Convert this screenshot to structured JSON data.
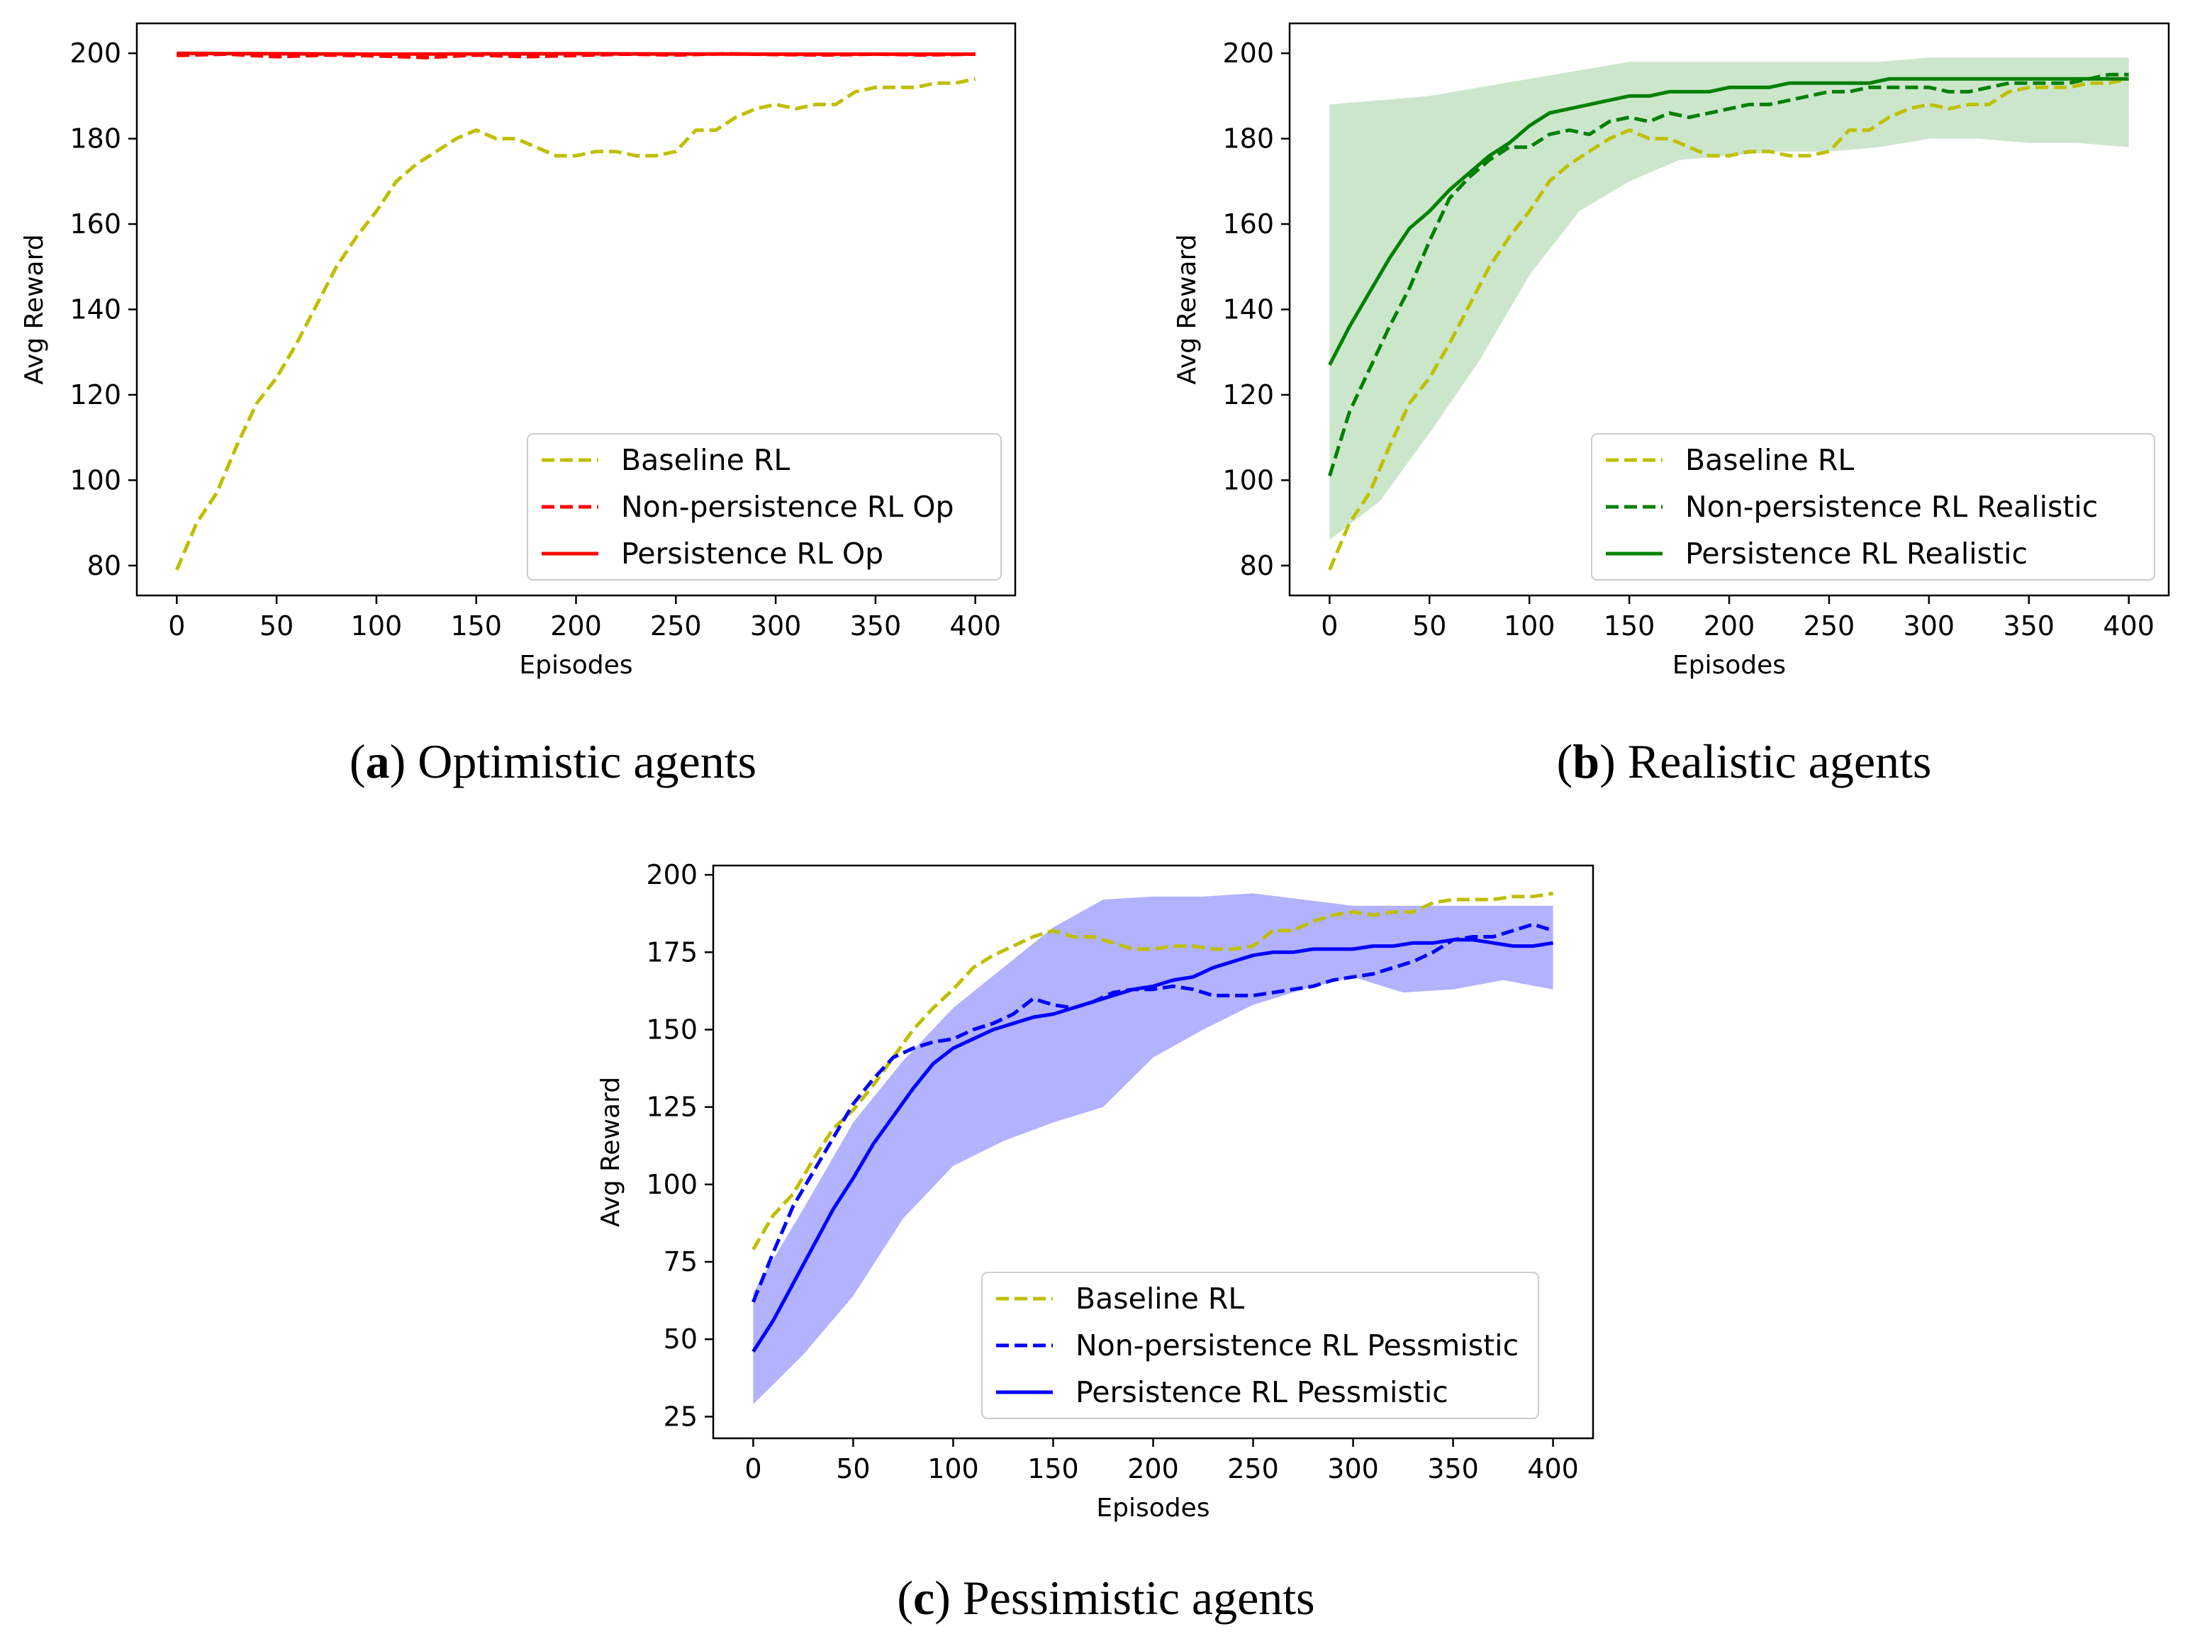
{
  "figure": {
    "captions": [
      {
        "id": "a",
        "letter": "a",
        "text": "Optimistic agents"
      },
      {
        "id": "b",
        "letter": "b",
        "text": "Realistic agents"
      },
      {
        "id": "c",
        "letter": "c",
        "text": "Pessimistic agents"
      }
    ]
  },
  "chart_data": [
    {
      "id": "a",
      "type": "line",
      "title": "",
      "xlabel": "Episodes",
      "ylabel": "Avg Reward",
      "xlim": [
        -20,
        420
      ],
      "ylim": [
        73,
        207
      ],
      "xticks": [
        0,
        50,
        100,
        150,
        200,
        250,
        300,
        350,
        400
      ],
      "yticks": [
        80,
        100,
        120,
        140,
        160,
        180,
        200
      ],
      "legend_position": "lower right",
      "band": null,
      "series": [
        {
          "name": "Baseline RL",
          "color": "#bfbf00",
          "style": "dashed",
          "x": [
            0,
            10,
            20,
            30,
            40,
            50,
            60,
            70,
            80,
            90,
            100,
            110,
            120,
            130,
            140,
            150,
            160,
            170,
            180,
            190,
            200,
            210,
            220,
            230,
            240,
            250,
            260,
            270,
            280,
            290,
            300,
            310,
            320,
            330,
            340,
            350,
            360,
            370,
            380,
            390,
            400
          ],
          "y": [
            79,
            90,
            97,
            108,
            118,
            124,
            132,
            141,
            150,
            157,
            163,
            170,
            174,
            177,
            180,
            182,
            180,
            180,
            178,
            176,
            176,
            177,
            177,
            176,
            176,
            177,
            182,
            182,
            185,
            187,
            188,
            187,
            188,
            188,
            191,
            192,
            192,
            192,
            193,
            193,
            194
          ]
        },
        {
          "name": "Non-persistence RL Op",
          "color": "#ff0000",
          "style": "dashed",
          "x": [
            0,
            25,
            50,
            75,
            100,
            125,
            150,
            175,
            200,
            225,
            250,
            275,
            300,
            325,
            350,
            375,
            400
          ],
          "y": [
            199.5,
            199.8,
            199.2,
            199.6,
            199.4,
            199.0,
            199.6,
            199.2,
            199.5,
            199.8,
            199.6,
            199.9,
            199.7,
            199.6,
            199.8,
            199.6,
            199.8
          ]
        },
        {
          "name": "Persistence RL Op",
          "color": "#ff0000",
          "style": "solid",
          "x": [
            0,
            100,
            200,
            300,
            400
          ],
          "y": [
            200,
            199.8,
            199.9,
            199.8,
            199.8
          ]
        }
      ]
    },
    {
      "id": "b",
      "type": "line",
      "title": "",
      "xlabel": "Episodes",
      "ylabel": "Avg Reward",
      "xlim": [
        -20,
        420
      ],
      "ylim": [
        73,
        207
      ],
      "xticks": [
        0,
        50,
        100,
        150,
        200,
        250,
        300,
        350,
        400
      ],
      "yticks": [
        80,
        100,
        120,
        140,
        160,
        180,
        200
      ],
      "legend_position": "lower right",
      "band": {
        "color": "#008000",
        "opacity": 0.2,
        "x": [
          0,
          25,
          50,
          75,
          100,
          125,
          150,
          175,
          200,
          225,
          250,
          275,
          300,
          325,
          350,
          375,
          400
        ],
        "lower": [
          86,
          95,
          111,
          128,
          148,
          163,
          170,
          175,
          176,
          177,
          177,
          178,
          180,
          180,
          179,
          179,
          178
        ],
        "upper": [
          188,
          189,
          190,
          192,
          194,
          196,
          198,
          198,
          198,
          198,
          198,
          198,
          199,
          199,
          199,
          199,
          199
        ]
      },
      "series": [
        {
          "name": "Baseline RL",
          "color": "#bfbf00",
          "style": "dashed",
          "x": [
            0,
            10,
            20,
            30,
            40,
            50,
            60,
            70,
            80,
            90,
            100,
            110,
            120,
            130,
            140,
            150,
            160,
            170,
            180,
            190,
            200,
            210,
            220,
            230,
            240,
            250,
            260,
            270,
            280,
            290,
            300,
            310,
            320,
            330,
            340,
            350,
            360,
            370,
            380,
            390,
            400
          ],
          "y": [
            79,
            90,
            97,
            108,
            118,
            124,
            132,
            141,
            150,
            157,
            163,
            170,
            174,
            177,
            180,
            182,
            180,
            180,
            178,
            176,
            176,
            177,
            177,
            176,
            176,
            177,
            182,
            182,
            185,
            187,
            188,
            187,
            188,
            188,
            191,
            192,
            192,
            192,
            193,
            193,
            194
          ]
        },
        {
          "name": "Non-persistence RL Realistic",
          "color": "#008000",
          "style": "dashed",
          "x": [
            0,
            10,
            20,
            30,
            40,
            50,
            60,
            70,
            80,
            90,
            100,
            110,
            120,
            130,
            140,
            150,
            160,
            170,
            180,
            190,
            200,
            210,
            220,
            230,
            240,
            250,
            260,
            270,
            280,
            290,
            300,
            310,
            320,
            330,
            340,
            350,
            360,
            370,
            380,
            390,
            400
          ],
          "y": [
            101,
            116,
            126,
            136,
            145,
            156,
            166,
            171,
            175,
            178,
            178,
            181,
            182,
            181,
            184,
            185,
            184,
            186,
            185,
            186,
            187,
            188,
            188,
            189,
            190,
            191,
            191,
            192,
            192,
            192,
            192,
            191,
            191,
            192,
            193,
            193,
            193,
            193,
            194,
            195,
            195
          ]
        },
        {
          "name": "Persistence RL Realistic",
          "color": "#008000",
          "style": "solid",
          "x": [
            0,
            10,
            20,
            30,
            40,
            50,
            60,
            70,
            80,
            90,
            100,
            110,
            120,
            130,
            140,
            150,
            160,
            170,
            180,
            190,
            200,
            210,
            220,
            230,
            240,
            250,
            260,
            270,
            280,
            290,
            300,
            310,
            320,
            330,
            340,
            350,
            360,
            370,
            380,
            390,
            400
          ],
          "y": [
            127,
            136,
            144,
            152,
            159,
            163,
            168,
            172,
            176,
            179,
            183,
            186,
            187,
            188,
            189,
            190,
            190,
            191,
            191,
            191,
            192,
            192,
            192,
            193,
            193,
            193,
            193,
            193,
            194,
            194,
            194,
            194,
            194,
            194,
            194,
            194,
            194,
            194,
            194,
            194,
            194
          ]
        }
      ]
    },
    {
      "id": "c",
      "type": "line",
      "title": "",
      "xlabel": "Episodes",
      "ylabel": "Avg Reward",
      "xlim": [
        -20,
        420
      ],
      "ylim": [
        18,
        203
      ],
      "xticks": [
        0,
        50,
        100,
        150,
        200,
        250,
        300,
        350,
        400
      ],
      "yticks": [
        25,
        50,
        75,
        100,
        125,
        150,
        175,
        200
      ],
      "legend_position": "lower right",
      "band": {
        "color": "#0000ff",
        "opacity": 0.3,
        "x": [
          0,
          25,
          50,
          75,
          100,
          125,
          150,
          175,
          200,
          225,
          250,
          275,
          300,
          325,
          350,
          375,
          400
        ],
        "lower": [
          29,
          45,
          64,
          89,
          106,
          114,
          120,
          125,
          141,
          150,
          158,
          163,
          167,
          162,
          163,
          166,
          163
        ],
        "upper": [
          65,
          92,
          120,
          140,
          157,
          170,
          183,
          192,
          193,
          193,
          194,
          192,
          190,
          190,
          190,
          190,
          190
        ]
      },
      "series": [
        {
          "name": "Baseline RL",
          "color": "#bfbf00",
          "style": "dashed",
          "x": [
            0,
            10,
            20,
            30,
            40,
            50,
            60,
            70,
            80,
            90,
            100,
            110,
            120,
            130,
            140,
            150,
            160,
            170,
            180,
            190,
            200,
            210,
            220,
            230,
            240,
            250,
            260,
            270,
            280,
            290,
            300,
            310,
            320,
            330,
            340,
            350,
            360,
            370,
            380,
            390,
            400
          ],
          "y": [
            79,
            90,
            97,
            108,
            118,
            124,
            132,
            141,
            150,
            157,
            163,
            170,
            174,
            177,
            180,
            182,
            180,
            180,
            178,
            176,
            176,
            177,
            177,
            176,
            176,
            177,
            182,
            182,
            185,
            187,
            188,
            187,
            188,
            188,
            191,
            192,
            192,
            192,
            193,
            193,
            194
          ]
        },
        {
          "name": "Non-persistence RL Pessmistic",
          "color": "#0000ff",
          "style": "dashed",
          "x": [
            0,
            10,
            20,
            30,
            40,
            50,
            60,
            70,
            80,
            90,
            100,
            110,
            120,
            130,
            140,
            150,
            160,
            170,
            180,
            190,
            200,
            210,
            220,
            230,
            240,
            250,
            260,
            270,
            280,
            290,
            300,
            310,
            320,
            330,
            340,
            350,
            360,
            370,
            380,
            390,
            400
          ],
          "y": [
            62,
            78,
            93,
            104,
            115,
            126,
            134,
            141,
            144,
            146,
            147,
            150,
            152,
            155,
            160,
            158,
            157,
            159,
            162,
            163,
            163,
            164,
            163,
            161,
            161,
            161,
            162,
            163,
            164,
            166,
            167,
            168,
            170,
            172,
            175,
            179,
            180,
            180,
            182,
            184,
            182
          ]
        },
        {
          "name": "Persistence RL Pessmistic",
          "color": "#0000ff",
          "style": "solid",
          "x": [
            0,
            10,
            20,
            30,
            40,
            50,
            60,
            70,
            80,
            90,
            100,
            110,
            120,
            130,
            140,
            150,
            160,
            170,
            180,
            190,
            200,
            210,
            220,
            230,
            240,
            250,
            260,
            270,
            280,
            290,
            300,
            310,
            320,
            330,
            340,
            350,
            360,
            370,
            380,
            390,
            400
          ],
          "y": [
            46,
            56,
            68,
            80,
            92,
            102,
            113,
            122,
            131,
            139,
            144,
            147,
            150,
            152,
            154,
            155,
            157,
            159,
            161,
            163,
            164,
            166,
            167,
            170,
            172,
            174,
            175,
            175,
            176,
            176,
            176,
            177,
            177,
            178,
            178,
            179,
            179,
            178,
            177,
            177,
            178
          ]
        }
      ]
    }
  ]
}
